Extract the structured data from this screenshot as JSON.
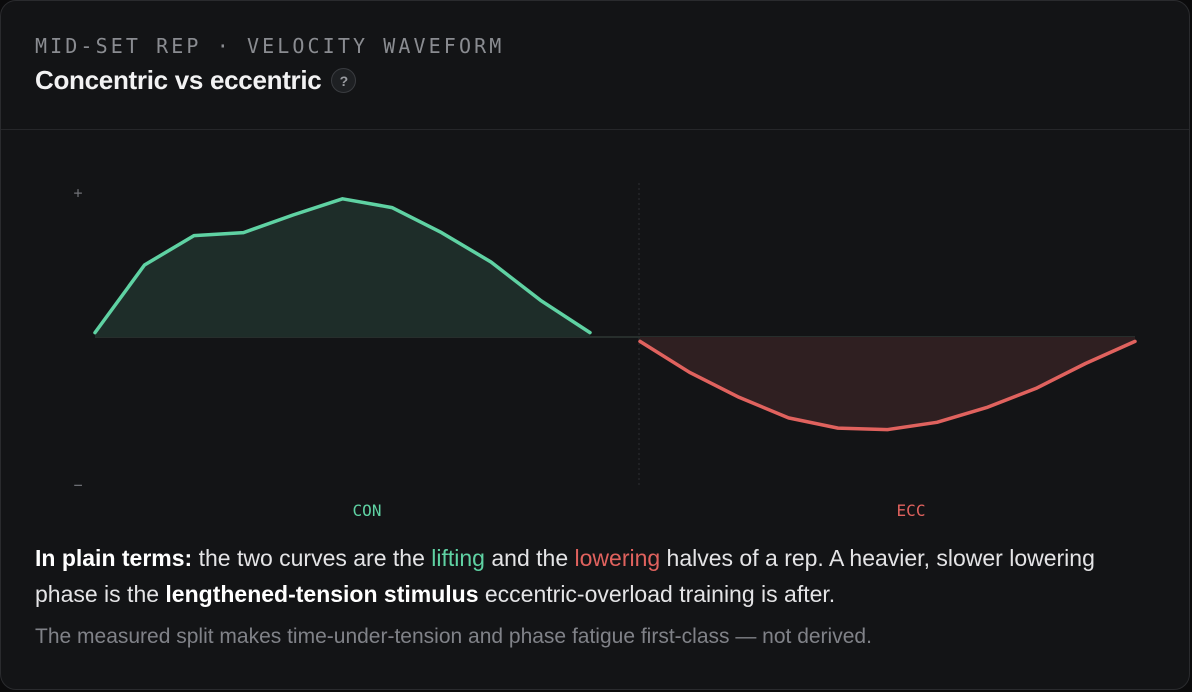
{
  "card": {
    "eyebrow": "MID-SET REP · VELOCITY WAVEFORM",
    "title": "Concentric vs eccentric",
    "help_label": "?"
  },
  "chart_data": {
    "type": "area",
    "title": "",
    "y_axis": {
      "plus_label": "+",
      "minus_label": "−",
      "range": [
        -1,
        1
      ],
      "zero_line": true
    },
    "series": [
      {
        "name": "CON",
        "color": "#5fd2a3",
        "fill": "#1e2d29",
        "x": [
          0,
          1,
          2,
          3,
          4,
          5,
          6,
          7,
          8,
          9,
          10
        ],
        "y": [
          0.03,
          0.49,
          0.69,
          0.71,
          0.83,
          0.94,
          0.88,
          0.71,
          0.51,
          0.25,
          0.03
        ]
      },
      {
        "name": "ECC",
        "color": "#e0625e",
        "fill": "#2f1f21",
        "x": [
          0,
          1,
          2,
          3,
          4,
          5,
          6,
          7,
          8,
          9,
          10
        ],
        "y": [
          -0.03,
          -0.24,
          -0.41,
          -0.55,
          -0.62,
          -0.63,
          -0.58,
          -0.48,
          -0.35,
          -0.18,
          -0.03
        ]
      }
    ],
    "phase_labels": [
      "CON",
      "ECC"
    ],
    "divider": true
  },
  "explanation": {
    "lead": "In plain terms:",
    "t1": " the two curves are the ",
    "lifting": "lifting",
    "t2": " and the ",
    "lowering": "lowering",
    "t3": " halves of a rep. A heavier, slower lowering phase is the ",
    "emph": "lengthened-tension stimulus",
    "t4": " eccentric-overload training is after."
  },
  "footnote": "The measured split makes time-under-tension and phase fatigue first-class — not derived.",
  "colors": {
    "concentric": "#5fd2a3",
    "eccentric": "#e0625e",
    "background": "#131416"
  }
}
